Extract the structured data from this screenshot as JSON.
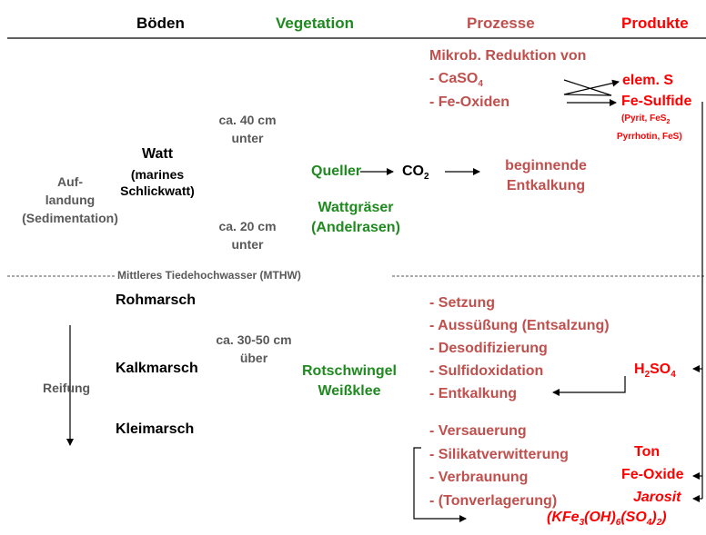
{
  "headers": {
    "boeden": "Böden",
    "vegetation": "Vegetation",
    "prozesse": "Prozesse",
    "produkte": "Produkte"
  },
  "left": {
    "auflandung": [
      "Auf-",
      "landung",
      "(Sedimentation)"
    ],
    "reifung": "Reifung"
  },
  "soils": {
    "watt": "Watt",
    "watt_sub": [
      "(marines",
      "Schlickwatt)"
    ],
    "rohmarsch": "Rohmarsch",
    "kalkmarsch": "Kalkmarsch",
    "kleimarsch": "Kleimarsch"
  },
  "depths": {
    "d40": [
      "ca. 40 cm",
      "unter"
    ],
    "d20": [
      "ca. 20 cm",
      "unter"
    ],
    "d3050": [
      "ca. 30-50 cm",
      "über"
    ]
  },
  "mthw": "Mittleres Tiedehochwasser (MTHW)",
  "vegetation": {
    "queller": "Queller",
    "wattgraeser": [
      "Wattgräser",
      "(Andelrasen)"
    ],
    "rotschwingel": [
      "Rotschwingel",
      "Weißklee"
    ]
  },
  "co2": {
    "base": "CO",
    "sub": "2"
  },
  "processes": {
    "mikrob": "Mikrob. Reduktion von",
    "caso4": {
      "base": "- CaSO",
      "sub": "4"
    },
    "feoxiden": "- Fe-Oxiden",
    "entkalkung_begin": [
      "beginnende",
      "Entkalkung"
    ],
    "list2": [
      "- Setzung",
      "- Aussüßung (Entsalzung)",
      "- Desodifizierung",
      "- Sulfidoxidation",
      "- Entkalkung"
    ],
    "list3": [
      "- Versauerung",
      "- Silikatverwitterung",
      "- Verbraunung",
      "- (Tonverlagerung)"
    ]
  },
  "products": {
    "elem_s": "elem. S",
    "fe_sulfide": "Fe-Sulfide",
    "pyrit": {
      "a": "(Pyrit, FeS",
      "sub": "2"
    },
    "pyrrhotin": "Pyrrhotin, FeS)",
    "h2so4": {
      "a": "H",
      "sub1": "2",
      "b": "SO",
      "sub2": "4"
    },
    "ton": "Ton",
    "fe_oxide": "Fe-Oxide",
    "jarosit": "Jarosit",
    "formula": {
      "a": "(KFe",
      "s1": "3",
      "b": "(OH)",
      "s2": "6",
      "c": "(SO",
      "s3": "4",
      "d": ")",
      "s4": "2",
      "e": ")"
    }
  }
}
